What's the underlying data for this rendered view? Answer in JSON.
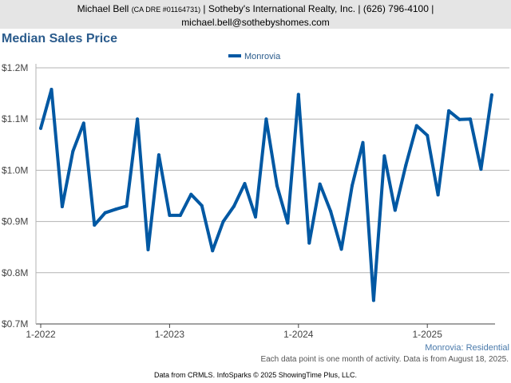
{
  "header": {
    "name": "Michael Bell",
    "license": "(CA DRE #01164731)",
    "rest_line1": "| Sotheby's International Realty, Inc. | (626) 796-4100 |",
    "email": "michael.bell@sothebyshomes.com"
  },
  "colors": {
    "series": "#0058a3",
    "title": "#2a5b8c",
    "header_bg": "#e5e5e5"
  },
  "chart_data": {
    "type": "line",
    "title": "Median Sales Price",
    "ylim": [
      700000,
      1200000
    ],
    "y_ticks": [
      {
        "value": 700000,
        "label": "$0.7M"
      },
      {
        "value": 800000,
        "label": "$0.8M"
      },
      {
        "value": 900000,
        "label": "$0.9M"
      },
      {
        "value": 1000000,
        "label": "$1.0M"
      },
      {
        "value": 1100000,
        "label": "$1.1M"
      },
      {
        "value": 1200000,
        "label": "$1.2M"
      }
    ],
    "x_ticks": [
      {
        "value": "2022-01",
        "label": "1-2022"
      },
      {
        "value": "2023-01",
        "label": "1-2023"
      },
      {
        "value": "2024-01",
        "label": "1-2024"
      },
      {
        "value": "2025-01",
        "label": "1-2025"
      }
    ],
    "legend": {
      "position": "top-center"
    },
    "grid": true,
    "series": [
      {
        "name": "Monrovia",
        "x": [
          "2022-01",
          "2022-02",
          "2022-03",
          "2022-04",
          "2022-05",
          "2022-06",
          "2022-07",
          "2022-08",
          "2022-09",
          "2022-10",
          "2022-11",
          "2022-12",
          "2023-01",
          "2023-02",
          "2023-03",
          "2023-04",
          "2023-05",
          "2023-06",
          "2023-07",
          "2023-08",
          "2023-09",
          "2023-10",
          "2023-11",
          "2023-12",
          "2024-01",
          "2024-02",
          "2024-03",
          "2024-04",
          "2024-05",
          "2024-06",
          "2024-07",
          "2024-08",
          "2024-09",
          "2024-10",
          "2024-11",
          "2024-12",
          "2025-01",
          "2025-02",
          "2025-03",
          "2025-04",
          "2025-05",
          "2025-06",
          "2025-07"
        ],
        "values": [
          1082000,
          1158000,
          929000,
          1037000,
          1092000,
          893000,
          917000,
          924000,
          930000,
          1100000,
          845000,
          1030000,
          912000,
          912000,
          953000,
          931000,
          843000,
          900000,
          930000,
          974000,
          909000,
          1100000,
          970000,
          897000,
          1148000,
          858000,
          973000,
          920000,
          846000,
          970000,
          1054000,
          746000,
          1028000,
          922000,
          1010000,
          1087000,
          1068000,
          952000,
          1116000,
          1099000,
          1100000,
          1002000,
          1147000
        ]
      }
    ]
  },
  "series_label": "Monrovia: Residential",
  "footnote": "Each data point is one month of activity. Data is from August 18, 2025.",
  "credit": "Data from CRMLS. InfoSparks © 2025 ShowingTime Plus, LLC."
}
